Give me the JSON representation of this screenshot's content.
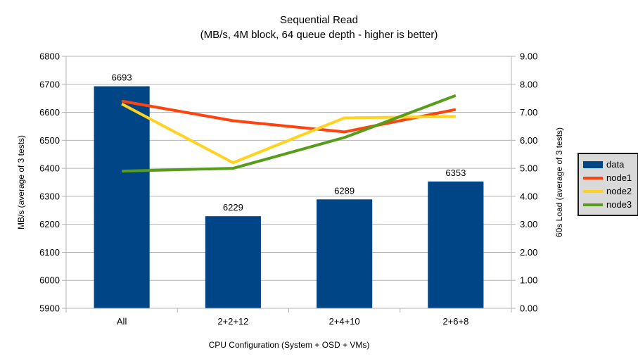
{
  "title": "Sequential Read",
  "subtitle": "(MB/s, 4M block, 64 queue depth - higher is better)",
  "colors": {
    "bar": "#004586",
    "node1": "#ff420e",
    "node2": "#ffd320",
    "node3": "#579d1c",
    "grid": "#b3b3b3",
    "axis": "#b3b3b3",
    "text": "#000000",
    "legend_bg": "#d9d9d9",
    "legend_border": "#1a1a1a"
  },
  "legend": {
    "position": "right",
    "items": [
      {
        "label": "data",
        "type": "bar",
        "color": "#004586"
      },
      {
        "label": "node1",
        "type": "line",
        "color": "#ff420e"
      },
      {
        "label": "node2",
        "type": "line",
        "color": "#ffd320"
      },
      {
        "label": "node3",
        "type": "line",
        "color": "#579d1c"
      }
    ]
  },
  "chart_data": {
    "type": "bar+line",
    "title": "Sequential Read",
    "subtitle": "(MB/s, 4M block, 64 queue depth - higher is better)",
    "categories": [
      "All",
      "2+2+12",
      "2+4+10",
      "2+6+8"
    ],
    "xlabel": "CPU Configuration (System + OSD + VMs)",
    "grid": "horizontal",
    "legend_position": "right",
    "left_axis": {
      "label": "MB/s (average of 3 tests)",
      "min": 5900,
      "max": 6800,
      "step": 100,
      "ticks": [
        "5900",
        "6000",
        "6100",
        "6200",
        "6300",
        "6400",
        "6500",
        "6600",
        "6700",
        "6800"
      ]
    },
    "right_axis": {
      "label": "60s Load (average of 3 tests)",
      "min": 0,
      "max": 9,
      "step": 1,
      "ticks": [
        "0.00",
        "1.00",
        "2.00",
        "3.00",
        "4.00",
        "5.00",
        "6.00",
        "7.00",
        "8.00",
        "9.00"
      ]
    },
    "series": [
      {
        "name": "data",
        "type": "bar",
        "axis": "left",
        "color": "#004586",
        "values": [
          6693,
          6229,
          6289,
          6353
        ],
        "labels": [
          "6693",
          "6229",
          "6289",
          "6353"
        ]
      },
      {
        "name": "node1",
        "type": "line",
        "axis": "right",
        "color": "#ff420e",
        "values": [
          7.4,
          6.7,
          6.3,
          7.1
        ]
      },
      {
        "name": "node2",
        "type": "line",
        "axis": "right",
        "color": "#ffd320",
        "values": [
          7.3,
          5.2,
          6.8,
          6.85
        ]
      },
      {
        "name": "node3",
        "type": "line",
        "axis": "right",
        "color": "#579d1c",
        "values": [
          4.9,
          5.0,
          6.1,
          7.6
        ]
      }
    ]
  }
}
